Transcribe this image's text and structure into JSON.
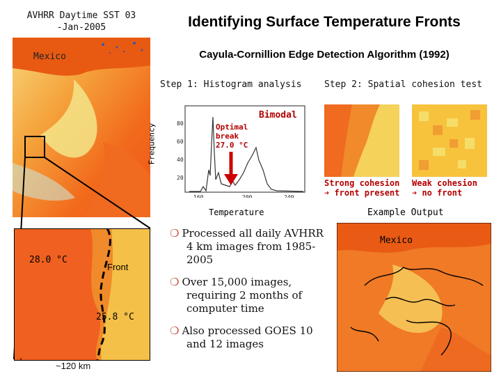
{
  "left_panel": {
    "caption_line1": "AVHRR Daytime SST 03",
    "caption_line2": "-Jan-2005",
    "map_label": "Mexico",
    "zoom": {
      "temp_warm": "28.0 °C",
      "front_label": "Front",
      "temp_cool": "25.8 °C",
      "scale": "~120 km"
    }
  },
  "header": {
    "title": "Identifying Surface Temperature Fronts",
    "subtitle": "Cayula-Cornillion Edge Detection Algorithm (1992)"
  },
  "step1": {
    "label": "Step 1: Histogram analysis",
    "ylabel": "Frequency",
    "xlabel": "Temperature",
    "bimodal": "Bimodal",
    "break_line1": "Optimal",
    "break_line2": "break",
    "break_line3": "27.0 °C",
    "y_ticks": [
      "80",
      "60",
      "40",
      "20"
    ],
    "x_ticks": [
      "160",
      "200",
      "240"
    ]
  },
  "step2": {
    "label": "Step 2: Spatial cohesion test",
    "strong_line1": "Strong cohesion",
    "strong_line2": "front present",
    "weak_line1": "Weak cohesion",
    "weak_line2": "no front"
  },
  "output": {
    "label": "Example Output",
    "map_label": "Mexico"
  },
  "bullets": [
    "Processed all daily AVHRR 4 km images from 1985-2005",
    "Over 15,000 images, requiring 2 months of computer time",
    "Also processed GOES 10 and 12 images"
  ],
  "colors": {
    "warm": "#f25a14",
    "mid": "#f7a23a",
    "cool": "#f5df62",
    "accent": "#b30000"
  }
}
